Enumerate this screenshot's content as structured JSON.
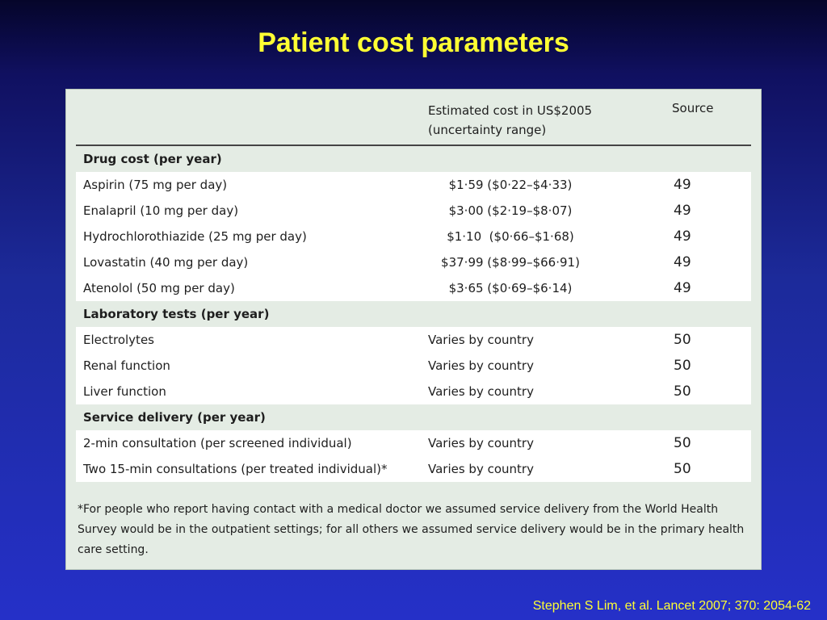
{
  "slide": {
    "title": "Patient cost parameters",
    "citation": "Stephen S Lim, et al. Lancet 2007; 370: 2054-62"
  },
  "table": {
    "header": {
      "col1": "",
      "col2_line1": "Estimated cost in US$2005",
      "col2_line2": "(uncertainty range)",
      "col3": "Source"
    },
    "sections": [
      {
        "title": "Drug cost (per year)",
        "rows": [
          {
            "item": "Aspirin (75 mg per day)",
            "cost": "$1·59 ($0·22–$4·33)",
            "source": "49"
          },
          {
            "item": "Enalapril (10 mg per day)",
            "cost": "$3·00 ($2·19–$8·07)",
            "source": "49"
          },
          {
            "item": "Hydrochlorothiazide (25 mg per day)",
            "cost": "$1·10  ($0·66–$1·68)",
            "source": "49"
          },
          {
            "item": "Lovastatin (40 mg per day)",
            "cost": "$37·99 ($8·99–$66·91)",
            "source": "49"
          },
          {
            "item": "Atenolol (50 mg per day)",
            "cost": "$3·65 ($0·69–$6·14)",
            "source": "49"
          }
        ]
      },
      {
        "title": "Laboratory tests (per year)",
        "rows": [
          {
            "item": "Electrolytes",
            "cost": "Varies by country",
            "source": "50"
          },
          {
            "item": "Renal function",
            "cost": "Varies by country",
            "source": "50"
          },
          {
            "item": "Liver function",
            "cost": "Varies by country",
            "source": "50"
          }
        ]
      },
      {
        "title": "Service delivery (per year)",
        "rows": [
          {
            "item": "2-min consultation (per screened individual)",
            "cost": "Varies by country",
            "source": "50"
          },
          {
            "item": "Two 15-min consultations (per treated individual)*",
            "cost": "Varies by country",
            "source": "50"
          }
        ]
      }
    ],
    "footnote": "*For people who report having contact with a medical doctor we assumed service delivery from the World Health Survey would be in the outpatient settings; for all others we assumed service delivery would be in the primary health care setting."
  }
}
